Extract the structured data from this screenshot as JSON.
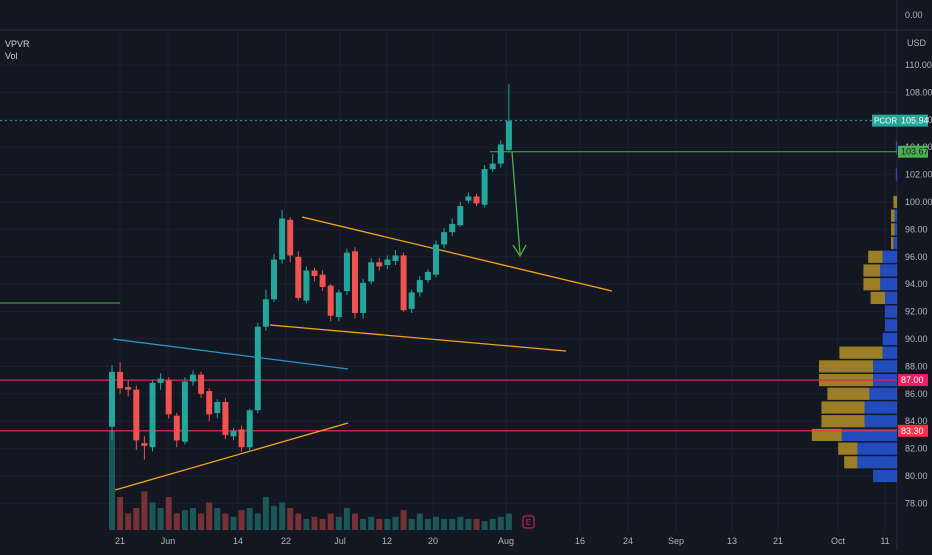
{
  "indicators": {
    "vpvr_label": "VPVR",
    "vol_label": "Vol"
  },
  "top_pane": {
    "tick": "0.00"
  },
  "axis": {
    "currency": "USD",
    "y_ticks": [
      "110.00",
      "108.00",
      "106.00",
      "104.00",
      "102.00",
      "100.00",
      "98.00",
      "96.00",
      "94.00",
      "92.00",
      "90.00",
      "88.00",
      "86.00",
      "84.00",
      "82.00",
      "80.00",
      "78.00"
    ],
    "x_ticks": [
      "21",
      "Jun",
      "14",
      "22",
      "Jul",
      "12",
      "20",
      "Aug",
      "16",
      "24",
      "Sep",
      "13",
      "21",
      "Oct",
      "11"
    ]
  },
  "price_labels": {
    "symbol": "PCOR",
    "last_price": "105.94",
    "line_level": "103.67",
    "level_87": "87.00",
    "level_83": "83.30"
  },
  "earnings_marker": "E",
  "colors": {
    "background": "#131722",
    "up": "#26a69a",
    "down": "#ef5350",
    "orange_line": "#f7a21b",
    "blue_line": "#2a94c9",
    "pink_line": "#e91e63",
    "red_line": "#f23645",
    "green_line": "#4caf50",
    "vp_blue": "#2962ff",
    "vp_gold": "#c9a227",
    "axis_text": "#b2b5be"
  },
  "chart_data": {
    "type": "candlestick",
    "ylim": [
      76.5,
      111.5
    ],
    "x": [
      "May 20",
      "May 21",
      "May 24",
      "May 25",
      "May 26",
      "May 27",
      "May 28",
      "Jun 1",
      "Jun 2",
      "Jun 3",
      "Jun 4",
      "Jun 7",
      "Jun 8",
      "Jun 9",
      "Jun 10",
      "Jun 11",
      "Jun 14",
      "Jun 15",
      "Jun 16",
      "Jun 17",
      "Jun 18",
      "Jun 21",
      "Jun 22",
      "Jun 23",
      "Jun 24",
      "Jun 25",
      "Jun 28",
      "Jun 29",
      "Jun 30",
      "Jul 1",
      "Jul 2",
      "Jul 6",
      "Jul 7",
      "Jul 8",
      "Jul 9",
      "Jul 12",
      "Jul 13",
      "Jul 14",
      "Jul 15",
      "Jul 16",
      "Jul 19",
      "Jul 20",
      "Jul 21",
      "Jul 22",
      "Jul 23",
      "Jul 26",
      "Jul 27",
      "Jul 28",
      "Jul 29",
      "Jul 30"
    ],
    "open": [
      83.6,
      87.6,
      86.5,
      86.3,
      82.4,
      82.1,
      86.8,
      87.0,
      84.4,
      82.5,
      86.9,
      87.4,
      86.2,
      84.6,
      85.4,
      82.9,
      83.4,
      82.1,
      84.8,
      90.9,
      92.9,
      95.8,
      98.7,
      96.0,
      92.8,
      95.0,
      94.7,
      93.9,
      91.6,
      93.5,
      96.4,
      91.9,
      94.2,
      95.6,
      95.4,
      95.7,
      96.1,
      92.2,
      93.4,
      94.3,
      94.7,
      96.9,
      97.8,
      98.3,
      100.1,
      100.4,
      99.8,
      102.4,
      102.8,
      103.8
    ],
    "close": [
      87.6,
      86.4,
      86.3,
      82.6,
      82.2,
      86.8,
      87.1,
      84.5,
      82.6,
      86.9,
      87.4,
      86.0,
      84.5,
      85.4,
      83.0,
      83.3,
      82.1,
      84.8,
      90.9,
      92.9,
      95.8,
      98.8,
      96.1,
      93.0,
      95.0,
      94.6,
      93.8,
      91.7,
      93.4,
      96.3,
      91.9,
      94.1,
      95.6,
      95.3,
      95.8,
      96.1,
      92.1,
      93.4,
      94.3,
      94.9,
      96.9,
      97.8,
      98.4,
      99.7,
      100.4,
      99.9,
      102.4,
      102.8,
      104.2,
      105.9
    ],
    "high": [
      88.1,
      88.3,
      87.0,
      86.6,
      82.9,
      87.0,
      87.5,
      87.2,
      84.6,
      87.2,
      87.7,
      87.6,
      86.4,
      85.6,
      85.7,
      83.5,
      83.7,
      84.9,
      91.2,
      93.6,
      96.2,
      99.4,
      98.9,
      96.4,
      95.3,
      95.2,
      95.0,
      94.0,
      93.6,
      96.6,
      96.7,
      94.4,
      95.9,
      95.9,
      96.1,
      96.5,
      96.3,
      93.6,
      94.6,
      95.1,
      97.2,
      98.1,
      98.8,
      100.0,
      100.7,
      100.6,
      102.7,
      103.5,
      104.5,
      108.6
    ],
    "low": [
      82.6,
      86.0,
      85.8,
      81.9,
      81.2,
      81.8,
      86.3,
      84.2,
      82.1,
      82.3,
      86.6,
      85.7,
      84.0,
      84.2,
      82.7,
      82.6,
      81.8,
      81.8,
      84.6,
      90.6,
      92.7,
      95.5,
      95.6,
      92.8,
      92.6,
      94.2,
      93.5,
      91.3,
      91.3,
      93.2,
      91.5,
      91.5,
      94.0,
      95.0,
      95.1,
      95.4,
      92.0,
      91.9,
      93.1,
      94.1,
      94.5,
      96.6,
      97.5,
      98.2,
      99.9,
      99.7,
      99.6,
      102.2,
      102.5,
      103.6
    ],
    "volume_relative": [
      0.9,
      0.3,
      0.15,
      0.2,
      0.35,
      0.25,
      0.2,
      0.3,
      0.15,
      0.18,
      0.2,
      0.15,
      0.25,
      0.2,
      0.15,
      0.12,
      0.18,
      0.2,
      0.15,
      0.3,
      0.22,
      0.25,
      0.2,
      0.15,
      0.1,
      0.12,
      0.1,
      0.15,
      0.12,
      0.2,
      0.15,
      0.1,
      0.12,
      0.1,
      0.1,
      0.12,
      0.18,
      0.1,
      0.15,
      0.1,
      0.12,
      0.1,
      0.1,
      0.12,
      0.1,
      0.1,
      0.08,
      0.1,
      0.12,
      0.15
    ],
    "volume_profile": [
      {
        "price": 80.0,
        "up": 0.0,
        "down": 0.2
      },
      {
        "price": 81.0,
        "up": 0.11,
        "down": 0.33
      },
      {
        "price": 82.0,
        "up": 0.16,
        "down": 0.33
      },
      {
        "price": 83.0,
        "up": 0.25,
        "down": 0.46
      },
      {
        "price": 84.0,
        "up": 0.36,
        "down": 0.27
      },
      {
        "price": 85.0,
        "up": 0.36,
        "down": 0.27
      },
      {
        "price": 86.0,
        "up": 0.35,
        "down": 0.23
      },
      {
        "price": 87.0,
        "up": 0.45,
        "down": 0.2
      },
      {
        "price": 88.0,
        "up": 0.45,
        "down": 0.2
      },
      {
        "price": 89.0,
        "up": 0.36,
        "down": 0.12
      },
      {
        "price": 90.0,
        "up": 0.0,
        "down": 0.12
      },
      {
        "price": 91.0,
        "up": 0.0,
        "down": 0.1
      },
      {
        "price": 92.0,
        "up": 0.0,
        "down": 0.1
      },
      {
        "price": 93.0,
        "up": 0.12,
        "down": 0.1
      },
      {
        "price": 94.0,
        "up": 0.14,
        "down": 0.14
      },
      {
        "price": 95.0,
        "up": 0.14,
        "down": 0.14
      },
      {
        "price": 96.0,
        "up": 0.12,
        "down": 0.12
      },
      {
        "price": 97.0,
        "up": 0.02,
        "down": 0.03
      },
      {
        "price": 98.0,
        "up": 0.03,
        "down": 0.02
      },
      {
        "price": 99.0,
        "up": 0.03,
        "down": 0.02
      },
      {
        "price": 100.0,
        "up": 0.03,
        "down": 0.0
      },
      {
        "price": 102.0,
        "up": 0.0,
        "down": 0.01
      },
      {
        "price": 104.0,
        "up": 0.0,
        "down": 0.01
      }
    ],
    "horizontal_levels": [
      {
        "price": 87.0,
        "color": "pink"
      },
      {
        "price": 83.3,
        "color": "red"
      },
      {
        "price": 103.67,
        "color": "green"
      }
    ],
    "trendlines": [
      {
        "color": "orange",
        "from": [
          "Jun 21",
          99.0
        ],
        "to": [
          "Aug 30",
          93.5
        ]
      },
      {
        "color": "orange",
        "from": [
          "Jun 18",
          91.0
        ],
        "to": [
          "Aug 26",
          89.0
        ]
      },
      {
        "color": "orange",
        "from": [
          "May 20",
          79.0
        ],
        "to": [
          "Jul 5",
          84.0
        ]
      },
      {
        "color": "blue",
        "from": [
          "May 20",
          90.0
        ],
        "to": [
          "Jul 5",
          87.6
        ]
      }
    ]
  }
}
